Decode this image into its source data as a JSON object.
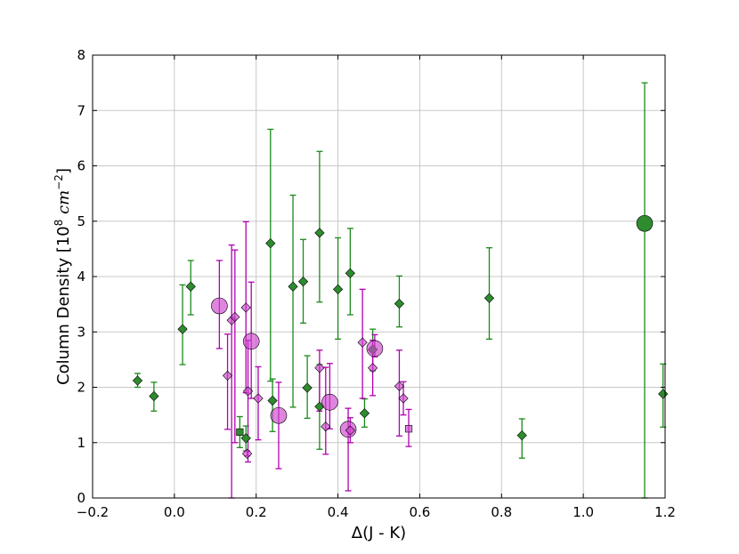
{
  "chart_data": {
    "type": "scatter",
    "title": "",
    "xlabel": "Δ(J - K)",
    "ylabel": "Column Density [10",
    "ylabel_sup": "8",
    "ylabel_unit": " cm",
    "ylabel_unit_sup": "−2",
    "ylabel_close": "]",
    "xlim": [
      -0.2,
      1.2
    ],
    "ylim": [
      0,
      8
    ],
    "xticks": [
      "−0.2",
      "0.0",
      "0.2",
      "0.4",
      "0.6",
      "0.8",
      "1.0",
      "1.2"
    ],
    "xtick_values": [
      -0.2,
      0.0,
      0.2,
      0.4,
      0.6,
      0.8,
      1.0,
      1.2
    ],
    "yticks": [
      "0",
      "1",
      "2",
      "3",
      "4",
      "5",
      "6",
      "7",
      "8"
    ],
    "ytick_values": [
      0,
      1,
      2,
      3,
      4,
      5,
      6,
      7,
      8
    ],
    "grid": true,
    "colors": {
      "green": "#2e8b2e",
      "magenta": "#cc44cc",
      "green_err": "#1a8a1a",
      "magenta_err": "#b000b0"
    },
    "series": [
      {
        "color": "green",
        "points": [
          {
            "x": -0.09,
            "y": 2.12,
            "lo": 2.0,
            "hi": 2.25,
            "m": "diamond"
          },
          {
            "x": -0.05,
            "y": 1.84,
            "lo": 1.57,
            "hi": 2.09,
            "m": "diamond"
          },
          {
            "x": 0.02,
            "y": 3.05,
            "lo": 2.41,
            "hi": 3.85,
            "m": "diamond"
          },
          {
            "x": 0.04,
            "y": 3.82,
            "lo": 3.31,
            "hi": 4.29,
            "m": "diamond"
          },
          {
            "x": 0.16,
            "y": 1.19,
            "lo": 0.91,
            "hi": 1.47,
            "m": "square"
          },
          {
            "x": 0.175,
            "y": 1.08,
            "lo": 0.85,
            "hi": 1.3,
            "m": "diamond"
          },
          {
            "x": 0.235,
            "y": 4.6,
            "lo": 2.11,
            "hi": 6.66,
            "m": "diamond"
          },
          {
            "x": 0.24,
            "y": 1.76,
            "lo": 1.2,
            "hi": 2.15,
            "m": "diamond"
          },
          {
            "x": 0.29,
            "y": 3.82,
            "lo": 1.64,
            "hi": 5.47,
            "m": "diamond"
          },
          {
            "x": 0.315,
            "y": 3.91,
            "lo": 3.16,
            "hi": 4.67,
            "m": "diamond"
          },
          {
            "x": 0.325,
            "y": 1.99,
            "lo": 1.44,
            "hi": 2.57,
            "m": "diamond"
          },
          {
            "x": 0.355,
            "y": 4.79,
            "lo": 3.54,
            "hi": 6.26,
            "m": "diamond"
          },
          {
            "x": 0.355,
            "y": 1.65,
            "lo": 0.88,
            "hi": 2.41,
            "m": "diamond"
          },
          {
            "x": 0.4,
            "y": 3.77,
            "lo": 2.87,
            "hi": 4.7,
            "m": "diamond"
          },
          {
            "x": 0.43,
            "y": 4.06,
            "lo": 3.31,
            "hi": 4.87,
            "m": "diamond"
          },
          {
            "x": 0.465,
            "y": 1.53,
            "lo": 1.28,
            "hi": 1.79,
            "m": "diamond"
          },
          {
            "x": 0.485,
            "y": 2.68,
            "lo": 2.3,
            "hi": 3.05,
            "m": "diamond"
          },
          {
            "x": 0.55,
            "y": 3.51,
            "lo": 3.09,
            "hi": 4.01,
            "m": "diamond"
          },
          {
            "x": 0.77,
            "y": 3.61,
            "lo": 2.87,
            "hi": 4.52,
            "m": "diamond"
          },
          {
            "x": 0.85,
            "y": 1.13,
            "lo": 0.72,
            "hi": 1.43,
            "m": "diamond"
          },
          {
            "x": 1.15,
            "y": 4.96,
            "lo": 0.0,
            "hi": 7.5,
            "m": "circle"
          },
          {
            "x": 1.195,
            "y": 1.88,
            "lo": 1.28,
            "hi": 2.42,
            "m": "diamond"
          }
        ]
      },
      {
        "color": "magenta",
        "points": [
          {
            "x": 0.11,
            "y": 3.47,
            "lo": 2.7,
            "hi": 4.29,
            "m": "circle"
          },
          {
            "x": 0.13,
            "y": 2.21,
            "lo": 1.24,
            "hi": 2.96,
            "m": "diamond"
          },
          {
            "x": 0.14,
            "y": 3.21,
            "lo": 0.0,
            "hi": 4.57,
            "m": "diamond"
          },
          {
            "x": 0.148,
            "y": 3.27,
            "lo": 1.0,
            "hi": 4.48,
            "m": "diamond"
          },
          {
            "x": 0.175,
            "y": 3.44,
            "lo": 1.9,
            "hi": 4.99,
            "m": "diamond"
          },
          {
            "x": 0.178,
            "y": 0.8,
            "lo": 0.76,
            "hi": 0.85,
            "m": "diamond"
          },
          {
            "x": 0.18,
            "y": 1.93,
            "lo": 0.65,
            "hi": 2.85,
            "m": "diamond"
          },
          {
            "x": 0.188,
            "y": 2.83,
            "lo": 1.8,
            "hi": 3.9,
            "m": "circle"
          },
          {
            "x": 0.205,
            "y": 1.8,
            "lo": 1.05,
            "hi": 2.37,
            "m": "diamond"
          },
          {
            "x": 0.255,
            "y": 1.49,
            "lo": 0.53,
            "hi": 2.09,
            "m": "circle"
          },
          {
            "x": 0.355,
            "y": 2.35,
            "lo": 1.57,
            "hi": 2.67,
            "m": "diamond"
          },
          {
            "x": 0.37,
            "y": 1.29,
            "lo": 0.79,
            "hi": 2.36,
            "m": "diamond"
          },
          {
            "x": 0.38,
            "y": 1.73,
            "lo": 1.25,
            "hi": 2.43,
            "m": "circle"
          },
          {
            "x": 0.425,
            "y": 1.24,
            "lo": 0.13,
            "hi": 1.62,
            "m": "circle"
          },
          {
            "x": 0.43,
            "y": 1.22,
            "lo": 1.0,
            "hi": 1.45,
            "m": "diamond"
          },
          {
            "x": 0.46,
            "y": 2.81,
            "lo": 1.8,
            "hi": 3.77,
            "m": "diamond"
          },
          {
            "x": 0.485,
            "y": 2.35,
            "lo": 1.85,
            "hi": 2.85,
            "m": "diamond"
          },
          {
            "x": 0.49,
            "y": 2.7,
            "lo": 2.55,
            "hi": 2.95,
            "m": "circle"
          },
          {
            "x": 0.55,
            "y": 2.02,
            "lo": 1.12,
            "hi": 2.67,
            "m": "diamond"
          },
          {
            "x": 0.56,
            "y": 1.8,
            "lo": 1.5,
            "hi": 2.1,
            "m": "diamond"
          },
          {
            "x": 0.573,
            "y": 1.25,
            "lo": 0.93,
            "hi": 1.6,
            "m": "square"
          }
        ]
      }
    ]
  }
}
